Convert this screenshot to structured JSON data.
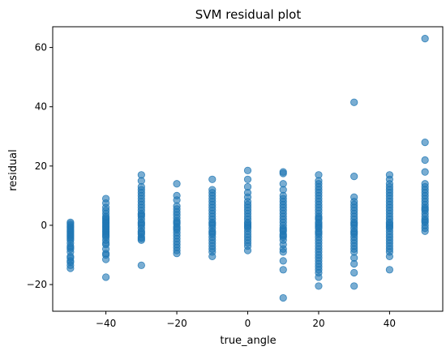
{
  "chart_data": {
    "type": "scatter",
    "title": "SVM residual plot",
    "xlabel": "true_angle",
    "ylabel": "residual",
    "xlim": [
      -55,
      55
    ],
    "ylim": [
      -29,
      67
    ],
    "xticks": [
      -40,
      -20,
      0,
      20,
      40
    ],
    "yticks": [
      -20,
      0,
      20,
      40,
      60
    ],
    "grid": false,
    "marker_color": "#1f77b4",
    "marker_alpha": 0.6,
    "groups": [
      {
        "x": -50,
        "values": [
          -14.5,
          -12.5,
          -10.5,
          -9,
          -8,
          -7,
          -6,
          -5,
          -4.5,
          -4,
          -3.5,
          -3,
          -2.5,
          -2,
          -1.5,
          -1,
          -0.5,
          0,
          0.5,
          1,
          -12,
          -11,
          -13.5,
          -7.5
        ]
      },
      {
        "x": -40,
        "values": [
          -17.5,
          -11.5,
          -10,
          -9.5,
          -8,
          -6.5,
          -5,
          -4,
          -3,
          -2.5,
          -2,
          -1.5,
          -1,
          -0.5,
          0,
          0.5,
          1,
          1.5,
          2,
          3,
          4,
          5,
          6,
          7.5,
          9,
          -6,
          -3.5,
          2.5
        ]
      },
      {
        "x": -30,
        "values": [
          -13.5,
          -5,
          -4.5,
          -4,
          -3,
          -2,
          -1,
          0,
          1,
          2,
          3,
          4,
          5,
          6,
          7,
          8,
          9,
          10,
          11,
          12,
          13,
          15,
          17,
          -2.5,
          0.5,
          3.5
        ]
      },
      {
        "x": -20,
        "values": [
          -9.5,
          -8.5,
          -7.5,
          -6.5,
          -5.5,
          -4.5,
          -3.5,
          -2.5,
          -1.5,
          -0.5,
          0.5,
          1.5,
          2.5,
          3.5,
          4.5,
          5.5,
          6.5,
          8.5,
          10,
          14,
          -1,
          1
        ]
      },
      {
        "x": -10,
        "values": [
          -10.5,
          -9,
          -8,
          -7,
          -6,
          -5,
          -4,
          -3,
          -2,
          -1,
          0,
          1,
          2,
          3,
          4,
          5,
          6,
          7,
          8,
          9,
          10,
          11,
          12,
          15.5,
          -2.5,
          0.5
        ]
      },
      {
        "x": 0,
        "values": [
          -8.5,
          -7,
          -6,
          -5,
          -4,
          -3,
          -2,
          -1,
          0,
          1,
          2,
          3,
          4,
          5,
          6,
          7,
          8,
          9.5,
          11,
          13,
          15.5,
          18.5,
          -0.5,
          0.5
        ]
      },
      {
        "x": 10,
        "values": [
          -24.5,
          -15,
          -12,
          -9,
          -8,
          -6.5,
          -5,
          -4,
          -3,
          -2,
          -1,
          0,
          1,
          2,
          3,
          4,
          5,
          6,
          7,
          8,
          9,
          10,
          12,
          14,
          17.5,
          18,
          -3.5,
          -1.5
        ]
      },
      {
        "x": 20,
        "values": [
          -20.5,
          -17.5,
          -16,
          -15,
          -14,
          -13,
          -12,
          -11,
          -10,
          -9,
          -8,
          -7,
          -6,
          -5,
          -4,
          -3,
          -2,
          -1,
          0,
          1,
          2,
          3,
          4,
          5,
          6,
          7,
          8,
          9,
          10,
          11,
          12,
          13,
          14,
          15,
          17,
          -2.5,
          -0.5,
          0.5,
          2.5
        ]
      },
      {
        "x": 30,
        "values": [
          -20.5,
          -16,
          -13,
          -11,
          -9,
          -8,
          -7,
          -6,
          -5,
          -4,
          -3,
          -2,
          -1,
          0,
          1,
          2,
          3,
          4,
          5,
          6,
          7,
          8,
          9.5,
          16.5,
          41.5,
          -2.5,
          0.5
        ]
      },
      {
        "x": 40,
        "values": [
          -15,
          -10.5,
          -9,
          -8,
          -7,
          -6,
          -5,
          -4,
          -3,
          -2,
          -1,
          0,
          1,
          2,
          3,
          4,
          5,
          6,
          7,
          8,
          9,
          10,
          11,
          12,
          13,
          14,
          15.5,
          17,
          -0.5,
          0.5
        ]
      },
      {
        "x": 50,
        "values": [
          -2,
          -1,
          0,
          1,
          2,
          3,
          4,
          5,
          6,
          7,
          8,
          9,
          10,
          11,
          12,
          13,
          14,
          18,
          22,
          28,
          63,
          1.5,
          5.5
        ]
      }
    ]
  }
}
